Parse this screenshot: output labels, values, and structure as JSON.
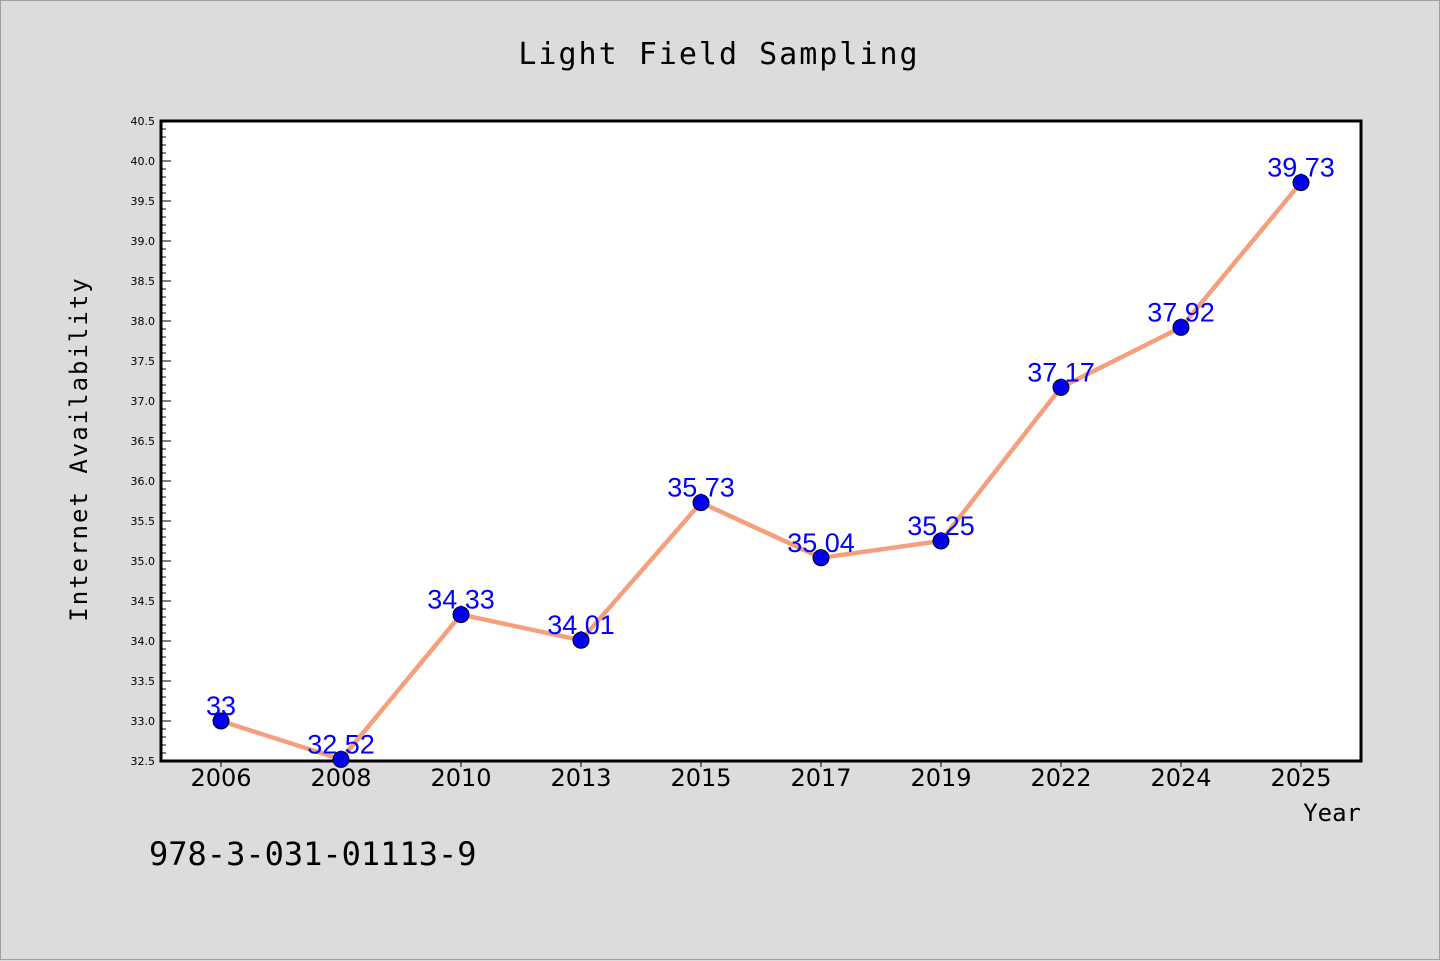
{
  "chart_data": {
    "type": "line",
    "title": "Light Field Sampling",
    "xlabel": "Year",
    "ylabel": "Internet Availability",
    "categories": [
      "2006",
      "2008",
      "2010",
      "2013",
      "2015",
      "2017",
      "2019",
      "2022",
      "2024",
      "2025"
    ],
    "series": [
      {
        "values": [
          33,
          32.52,
          34.33,
          34.01,
          35.73,
          35.04,
          35.25,
          37.17,
          37.92,
          39.73
        ],
        "data_labels": [
          "33",
          "32.52",
          "34.33",
          "34.01",
          "35.73",
          "35.04",
          "35.25",
          "37.17",
          "37.92",
          "39.73"
        ],
        "line_color": "#f4a07e",
        "marker_color": "#0000ee"
      }
    ],
    "ylim": [
      32.5,
      40.5
    ],
    "yticks": [
      "32.5",
      "33.0",
      "33.5",
      "34.0",
      "34.5",
      "35.0",
      "35.5",
      "36.0",
      "36.5",
      "37.0",
      "37.5",
      "38.0",
      "38.5",
      "39.0",
      "39.5",
      "40.0",
      "40.5"
    ],
    "grid": false,
    "legend": "none"
  },
  "footer": {
    "text": "978-3-031-01113-9"
  },
  "colors": {
    "background": "#dcdcdc",
    "plot_background": "#ffffff",
    "label_color": "#0000ff"
  }
}
